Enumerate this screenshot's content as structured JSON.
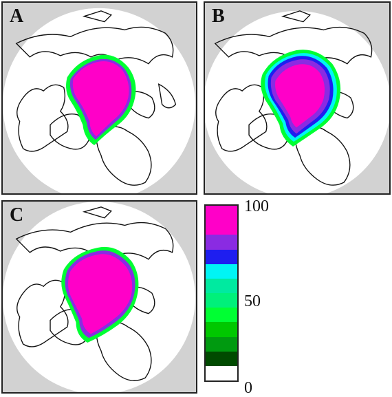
{
  "panels": [
    {
      "id": "a",
      "label": "A"
    },
    {
      "id": "b",
      "label": "B"
    },
    {
      "id": "c",
      "label": "C"
    }
  ],
  "colorbar": {
    "tick_labels": {
      "top": "100",
      "mid": "50",
      "bottom": "0"
    },
    "colors_top_to_bottom": [
      "#ff00c8",
      "#ff00c8",
      "#8a2be2",
      "#1e1ef0",
      "#00f5f5",
      "#00eaa0",
      "#00f07a",
      "#00ff33",
      "#00c800",
      "#009a10",
      "#004a00",
      "#ffffff"
    ]
  },
  "colors": {
    "background_gray": "#d2d2d2",
    "disk_white": "#ffffff",
    "ice_high": "#ff00c8",
    "ice_purple": "#8a2be2",
    "ice_blue": "#1e1ef0",
    "ice_cyan": "#00f5f5",
    "ice_green": "#00ff33",
    "coastline": "#111111"
  }
}
